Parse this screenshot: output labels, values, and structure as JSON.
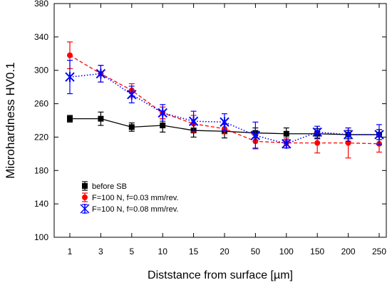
{
  "chart_data": {
    "type": "line",
    "title": "",
    "xlabel": "Diststance from surface [µm]",
    "ylabel": "Microhardness HV0.1",
    "categories": [
      "1",
      "3",
      "5",
      "10",
      "15",
      "20",
      "50",
      "100",
      "150",
      "200",
      "250"
    ],
    "ylim": [
      100,
      380
    ],
    "yticks": [
      100,
      140,
      180,
      220,
      260,
      300,
      340,
      380
    ],
    "grid": false,
    "legend_position": "lower-left",
    "series": [
      {
        "name": "before SB",
        "color": "#000000",
        "line_style": "solid",
        "marker": "square",
        "values": [
          242,
          242,
          232,
          234,
          228,
          227,
          225,
          224,
          224,
          223,
          223
        ],
        "errors": [
          4,
          8,
          5,
          8,
          8,
          8,
          6,
          7,
          6,
          5,
          6
        ]
      },
      {
        "name": "F=100 N, f=0.03 mm/rev.",
        "color": "#ff0000",
        "line_style": "dashed",
        "marker": "circle",
        "values": [
          318,
          296,
          276,
          249,
          236,
          230,
          215,
          213,
          213,
          213,
          212
        ],
        "errors": [
          16,
          10,
          8,
          7,
          10,
          6,
          8,
          6,
          12,
          18,
          10
        ]
      },
      {
        "name": "F=100 N, f=0.08 mm/rev.",
        "color": "#0000ff",
        "line_style": "dotted",
        "marker": "asterisk",
        "values": [
          292,
          296,
          271,
          249,
          239,
          238,
          222,
          212,
          226,
          223,
          223
        ],
        "errors": [
          20,
          10,
          10,
          10,
          12,
          10,
          16,
          5,
          7,
          8,
          12
        ]
      }
    ]
  }
}
